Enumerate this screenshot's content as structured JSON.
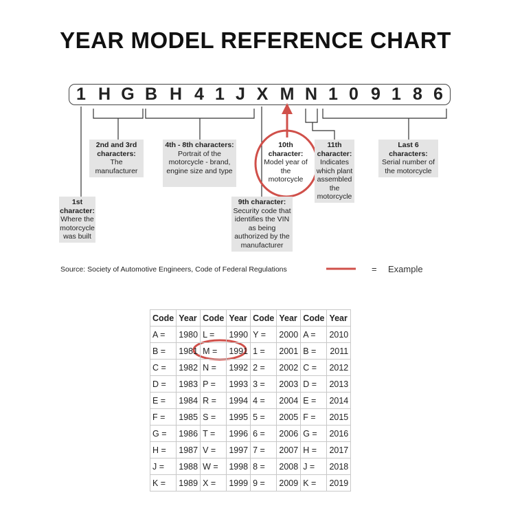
{
  "title": "YEAR MODEL REFERENCE CHART",
  "vin": [
    "1",
    "H",
    "G",
    "B",
    "H",
    "4",
    "1",
    "J",
    "X",
    "M",
    "N",
    "1",
    "0",
    "9",
    "1",
    "8",
    "6"
  ],
  "labels": {
    "first": {
      "head": "1st character:",
      "body": "Where the motorcycle was built"
    },
    "second_third": {
      "head": "2nd and 3rd characters:",
      "body": "The manufacturer"
    },
    "fourth_eighth": {
      "head": "4th - 8th characters:",
      "body": "Portrait of the motorcycle - brand, engine size and type"
    },
    "ninth": {
      "head": "9th character:",
      "body": "Security code that identifies the VIN as being authorized by the manufacturer"
    },
    "tenth": {
      "head": "10th character:",
      "body": "Model year of the motorcycle"
    },
    "eleventh": {
      "head": "11th character:",
      "body": "Indicates which plant assembled the motorcycle"
    },
    "last6": {
      "head": "Last 6 characters:",
      "body": "Serial number of the motorcycle"
    }
  },
  "source": "Source:  Society of Automotive Engineers, Code of Federal Regulations",
  "legend": {
    "eq": "=",
    "label": "Example",
    "color": "#d0504a"
  },
  "table": {
    "headers": [
      "Code",
      "Year",
      "Code",
      "Year",
      "Code",
      "Year",
      "Code",
      "Year"
    ],
    "rows": [
      [
        "A =",
        "1980",
        "L =",
        "1990",
        "Y =",
        "2000",
        "A =",
        "2010"
      ],
      [
        "B =",
        "1981",
        "M =",
        "1991",
        "1 =",
        "2001",
        "B =",
        "2011"
      ],
      [
        "C =",
        "1982",
        "N =",
        "1992",
        "2 =",
        "2002",
        "C =",
        "2012"
      ],
      [
        "D =",
        "1983",
        "P =",
        "1993",
        "3 =",
        "2003",
        "D =",
        "2013"
      ],
      [
        "E =",
        "1984",
        "R =",
        "1994",
        "4 =",
        "2004",
        "E =",
        "2014"
      ],
      [
        "F =",
        "1985",
        "S =",
        "1995",
        "5 =",
        "2005",
        "F =",
        "2015"
      ],
      [
        "G =",
        "1986",
        "T =",
        "1996",
        "6 =",
        "2006",
        "G =",
        "2016"
      ],
      [
        "H =",
        "1987",
        "V =",
        "1997",
        "7 =",
        "2007",
        "H =",
        "2017"
      ],
      [
        "J =",
        "1988",
        "W =",
        "1998",
        "8 =",
        "2008",
        "J =",
        "2018"
      ],
      [
        "K =",
        "1989",
        "X =",
        "1999",
        "9 =",
        "2009",
        "K =",
        "2019"
      ]
    ]
  }
}
